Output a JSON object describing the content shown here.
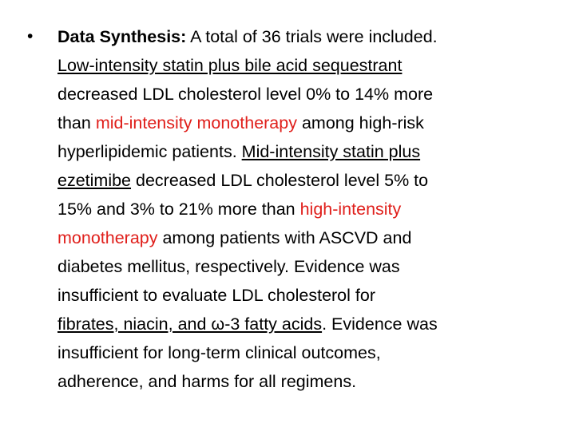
{
  "slide": {
    "bullet": "•",
    "text_color": "#000000",
    "lines": [
      [
        {
          "text": "Data Synthesis:",
          "bold": true
        },
        {
          "text": " A total of 36 trials were included."
        }
      ],
      [
        {
          "text": "Low-intensity statin plus bile acid sequestrant",
          "underline": true
        }
      ],
      [
        {
          "text": "decreased LDL cholesterol level 0% to 14% more"
        }
      ],
      [
        {
          "text": "than "
        },
        {
          "text": "mid-intensity monotherapy",
          "color": "#e0201c"
        },
        {
          "text": " among high-risk"
        }
      ],
      [
        {
          "text": "hyperlipidemic patients. "
        },
        {
          "text": "Mid-intensity statin plus",
          "underline": true
        }
      ],
      [
        {
          "text": "ezetimibe",
          "underline": true
        },
        {
          "text": " decreased LDL cholesterol level 5% to"
        }
      ],
      [
        {
          "text": "15% and 3% to 21% more than "
        },
        {
          "text": "high-intensity",
          "color": "#e0201c"
        }
      ],
      [
        {
          "text": "monotherapy",
          "color": "#e0201c"
        },
        {
          "text": " among patients with ASCVD and"
        }
      ],
      [
        {
          "text": "diabetes mellitus, respectively. Evidence was"
        }
      ],
      [
        {
          "text": "insufficient to evaluate LDL cholesterol for"
        }
      ],
      [
        {
          "text": "fibrates, niacin, and ω-3 fatty acids",
          "underline": true
        },
        {
          "text": ". Evidence was"
        }
      ],
      [
        {
          "text": "insufficient for long-term clinical outcomes,"
        }
      ],
      [
        {
          "text": "adherence, and harms for all regimens."
        }
      ]
    ]
  }
}
